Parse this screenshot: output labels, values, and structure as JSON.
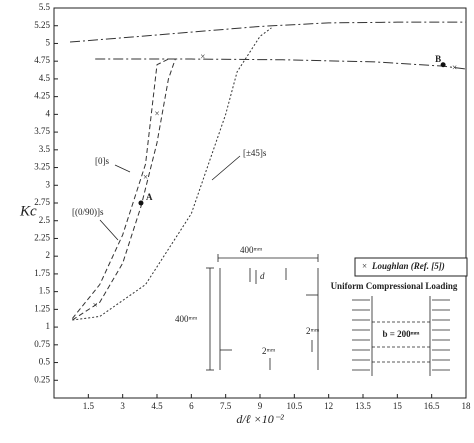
{
  "chart_data": {
    "type": "line",
    "xlabel": "d/ℓ ×10⁻²",
    "ylabel": "Kc",
    "xlim": [
      0,
      18
    ],
    "ylim": [
      0,
      5.5
    ],
    "xticks": [
      1.5,
      3,
      4.5,
      6,
      7.5,
      9,
      10.5,
      12,
      13.5,
      15,
      16.5,
      18
    ],
    "yticks": [
      0.25,
      0.5,
      0.75,
      1,
      1.25,
      1.5,
      1.75,
      2,
      2.25,
      2.5,
      2.75,
      3,
      3.25,
      3.5,
      3.75,
      4,
      4.25,
      4.5,
      4.75,
      5,
      5.25,
      5.5
    ],
    "series": [
      {
        "x": [
          0.7,
          3,
          6,
          9,
          12,
          15,
          18
        ],
        "values": [
          5.02,
          5.08,
          5.16,
          5.24,
          5.29,
          5.3,
          5.3
        ],
        "color": "#333",
        "dash": "10,3,2,3"
      },
      {
        "x": [
          1.8,
          6,
          10,
          14,
          17,
          18
        ],
        "values": [
          4.78,
          4.78,
          4.77,
          4.74,
          4.68,
          4.64
        ],
        "color": "#333",
        "dash": "10,3,2,3"
      },
      {
        "name": "[0]s",
        "x": [
          0.8,
          2,
          3,
          4,
          4.5,
          5
        ],
        "values": [
          1.12,
          1.6,
          2.3,
          3.3,
          4.7,
          4.78
        ],
        "color": "#333",
        "dash": "5,3"
      },
      {
        "name": "[(0/90)]s",
        "x": [
          0.8,
          2,
          3,
          3.8,
          4.5,
          5,
          5.3
        ],
        "values": [
          1.1,
          1.35,
          1.9,
          2.7,
          3.6,
          4.5,
          4.78
        ],
        "color": "#333",
        "dash": "5,3"
      },
      {
        "name": "[±45]s",
        "x": [
          0.8,
          2,
          4,
          6,
          7.5,
          8,
          9,
          9.5
        ],
        "values": [
          1.1,
          1.15,
          1.6,
          2.6,
          4.0,
          4.6,
          5.1,
          5.22
        ],
        "color": "#333",
        "dash": "2,2"
      }
    ],
    "markers": {
      "name": "Loughlan (Ref. [5])",
      "x": [
        1.8,
        4,
        4.5,
        6.5,
        17.5
      ],
      "values": [
        1.3,
        3.1,
        4.0,
        4.8,
        4.65
      ]
    },
    "points": [
      {
        "label": "A",
        "x": 3.8,
        "y": 2.75
      },
      {
        "label": "B",
        "x": 17,
        "y": 4.7
      }
    ]
  },
  "inset": {
    "plate_width": "400ᵐᵐ",
    "plate_height": "400ᵐᵐ",
    "crack": "d",
    "gap_right": "2ᵐᵐ",
    "gap_bottom": "2ᵐᵐ",
    "loading_title": "Uniform Compressional Loading",
    "loaded_width": "b = 200ᵐᵐ"
  }
}
